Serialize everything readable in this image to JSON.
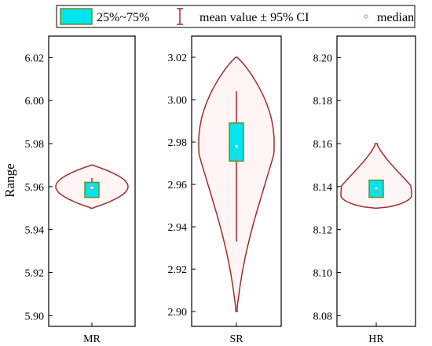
{
  "colors": {
    "violin_stroke": "#a52a2a",
    "violin_fill": "#fff5f5",
    "box_fill": "#00e5ee",
    "box_stroke": "#6b8e23",
    "whisker": "#a52a2a",
    "median_marker": "#f08080",
    "axis": "#000000"
  },
  "legend": {
    "box_label": "25%~75%",
    "ci_label": "mean value ± 95% CI",
    "median_label": "median"
  },
  "chart_data": [
    {
      "type": "violin",
      "category": "MR",
      "ylabel": "Range",
      "ylim": [
        5.895,
        6.03
      ],
      "yticks": [
        5.9,
        5.92,
        5.94,
        5.96,
        5.98,
        6.0,
        6.02
      ],
      "ytick_labels": [
        "5.90",
        "5.92",
        "5.94",
        "5.96",
        "5.98",
        "6.00",
        "6.02"
      ],
      "violin": {
        "min": 5.95,
        "max": 5.97,
        "mode": 5.96
      },
      "box": {
        "q1": 5.955,
        "q3": 5.962
      },
      "ci": {
        "low": 5.955,
        "high": 5.964
      },
      "mean": 5.9595,
      "median": 5.9595
    },
    {
      "type": "violin",
      "category": "SR",
      "ylabel": "",
      "ylim": [
        2.893,
        3.03
      ],
      "yticks": [
        2.9,
        2.92,
        2.94,
        2.96,
        2.98,
        3.0,
        3.02
      ],
      "ytick_labels": [
        "2.90",
        "2.92",
        "2.94",
        "2.96",
        "2.98",
        "3.00",
        "3.02"
      ],
      "violin": {
        "min": 2.9,
        "max": 3.02,
        "mode": 2.98
      },
      "box": {
        "q1": 2.971,
        "q3": 2.989
      },
      "ci": {
        "low": 2.933,
        "high": 3.004
      },
      "mean": 2.978,
      "median": 2.973
    },
    {
      "type": "violin",
      "category": "HR",
      "ylabel": "",
      "ylim": [
        8.075,
        8.21
      ],
      "yticks": [
        8.08,
        8.1,
        8.12,
        8.14,
        8.16,
        8.18,
        8.2
      ],
      "ytick_labels": [
        "8.08",
        "8.10",
        "8.12",
        "8.14",
        "8.16",
        "8.18",
        "8.20"
      ],
      "violin": {
        "min": 8.13,
        "max": 8.16,
        "mode": 8.136
      },
      "box": {
        "q1": 8.135,
        "q3": 8.143
      },
      "ci": {
        "low": 8.135,
        "high": 8.143
      },
      "mean": 8.139,
      "median": 8.138
    }
  ]
}
